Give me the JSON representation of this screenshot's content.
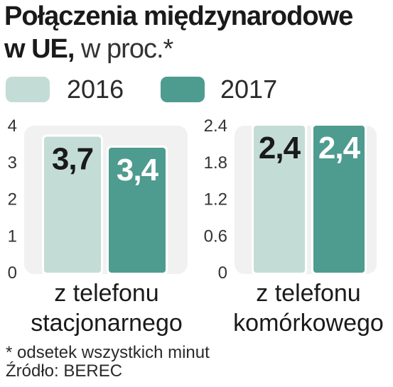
{
  "title": {
    "bold": "Połączenia międzynarodowe",
    "bold2": "w UE,",
    "light": " w proc.*"
  },
  "legend": [
    {
      "label": "2016",
      "color": "#c3ddd6"
    },
    {
      "label": "2017",
      "color": "#4e9b8f"
    }
  ],
  "chart_data": [
    {
      "type": "bar",
      "categories": [
        "z telefonu stacjonarnego"
      ],
      "category_lines": [
        "z telefonu",
        "stacjonarnego"
      ],
      "series": [
        {
          "name": "2016",
          "values": [
            3.7
          ],
          "labels": [
            "3,7"
          ]
        },
        {
          "name": "2017",
          "values": [
            3.4
          ],
          "labels": [
            "3,4"
          ]
        }
      ],
      "ylim": [
        0,
        4
      ],
      "yticks": [
        "0",
        "1",
        "2",
        "3",
        "4"
      ]
    },
    {
      "type": "bar",
      "categories": [
        "z telefonu komórkowego"
      ],
      "category_lines": [
        "z telefonu",
        "komórkowego"
      ],
      "series": [
        {
          "name": "2016",
          "values": [
            2.4
          ],
          "labels": [
            "2,4"
          ]
        },
        {
          "name": "2017",
          "values": [
            2.4
          ],
          "labels": [
            "2,4"
          ]
        }
      ],
      "ylim": [
        0,
        2.4
      ],
      "yticks": [
        "0",
        "0.6",
        "1.2",
        "1.8",
        "2.4"
      ]
    }
  ],
  "footnotes": [
    "* odsetek wszystkich minut",
    "Źródło: BEREC"
  ]
}
